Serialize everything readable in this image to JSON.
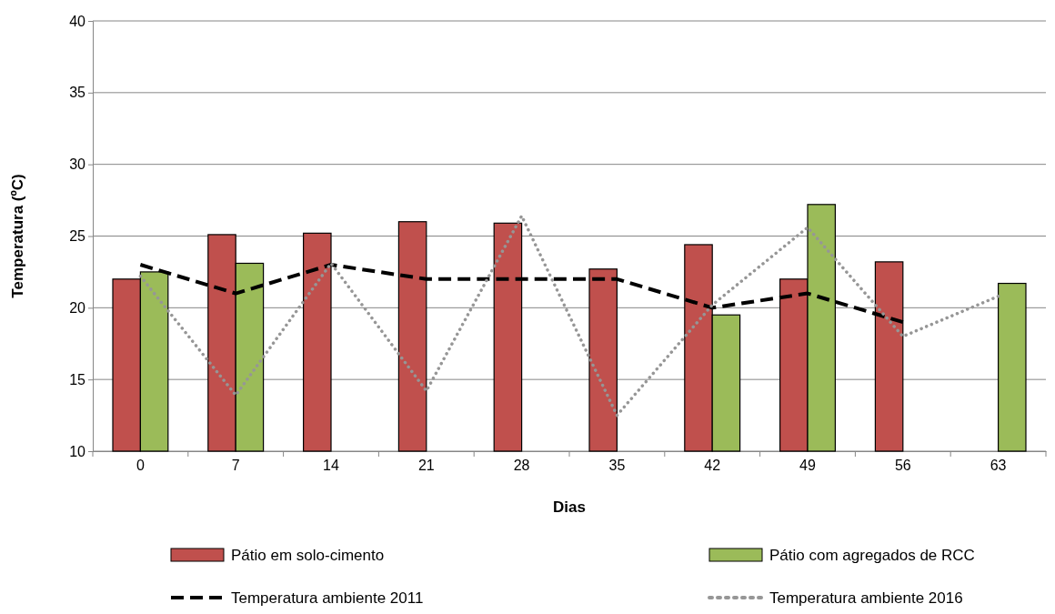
{
  "chart_data": {
    "type": "bar",
    "xlabel": "Dias",
    "ylabel": "Temperatura (ºC)",
    "categories": [
      "0",
      "7",
      "14",
      "21",
      "28",
      "35",
      "42",
      "49",
      "56",
      "63"
    ],
    "ylim": [
      10,
      40
    ],
    "yticks": [
      10,
      15,
      20,
      25,
      30,
      35,
      40
    ],
    "grid": "y",
    "legend": "bottom",
    "series": [
      {
        "name": "Pátio em solo-cimento",
        "color": "#c0504d",
        "values": [
          22.0,
          25.1,
          25.2,
          26.0,
          25.9,
          22.7,
          24.4,
          22.0,
          23.2,
          null
        ]
      },
      {
        "name": "Pátio com agregados de RCC",
        "color": "#9bbb59",
        "values": [
          22.5,
          23.1,
          null,
          null,
          null,
          null,
          19.5,
          27.2,
          null,
          21.7
        ]
      },
      {
        "name": "Temperatura ambiente 2011",
        "type": "line",
        "color": "#000000",
        "line_style": "dashed",
        "values": [
          23,
          21,
          23,
          22,
          22,
          22,
          20,
          21,
          19,
          null
        ]
      },
      {
        "name": "Temperatura ambiente 2016",
        "type": "line",
        "color": "#969696",
        "line_style": "dotted",
        "values": [
          22.2,
          13.9,
          23.1,
          14.2,
          26.4,
          12.5,
          20.2,
          25.6,
          18,
          20.8
        ]
      }
    ]
  }
}
